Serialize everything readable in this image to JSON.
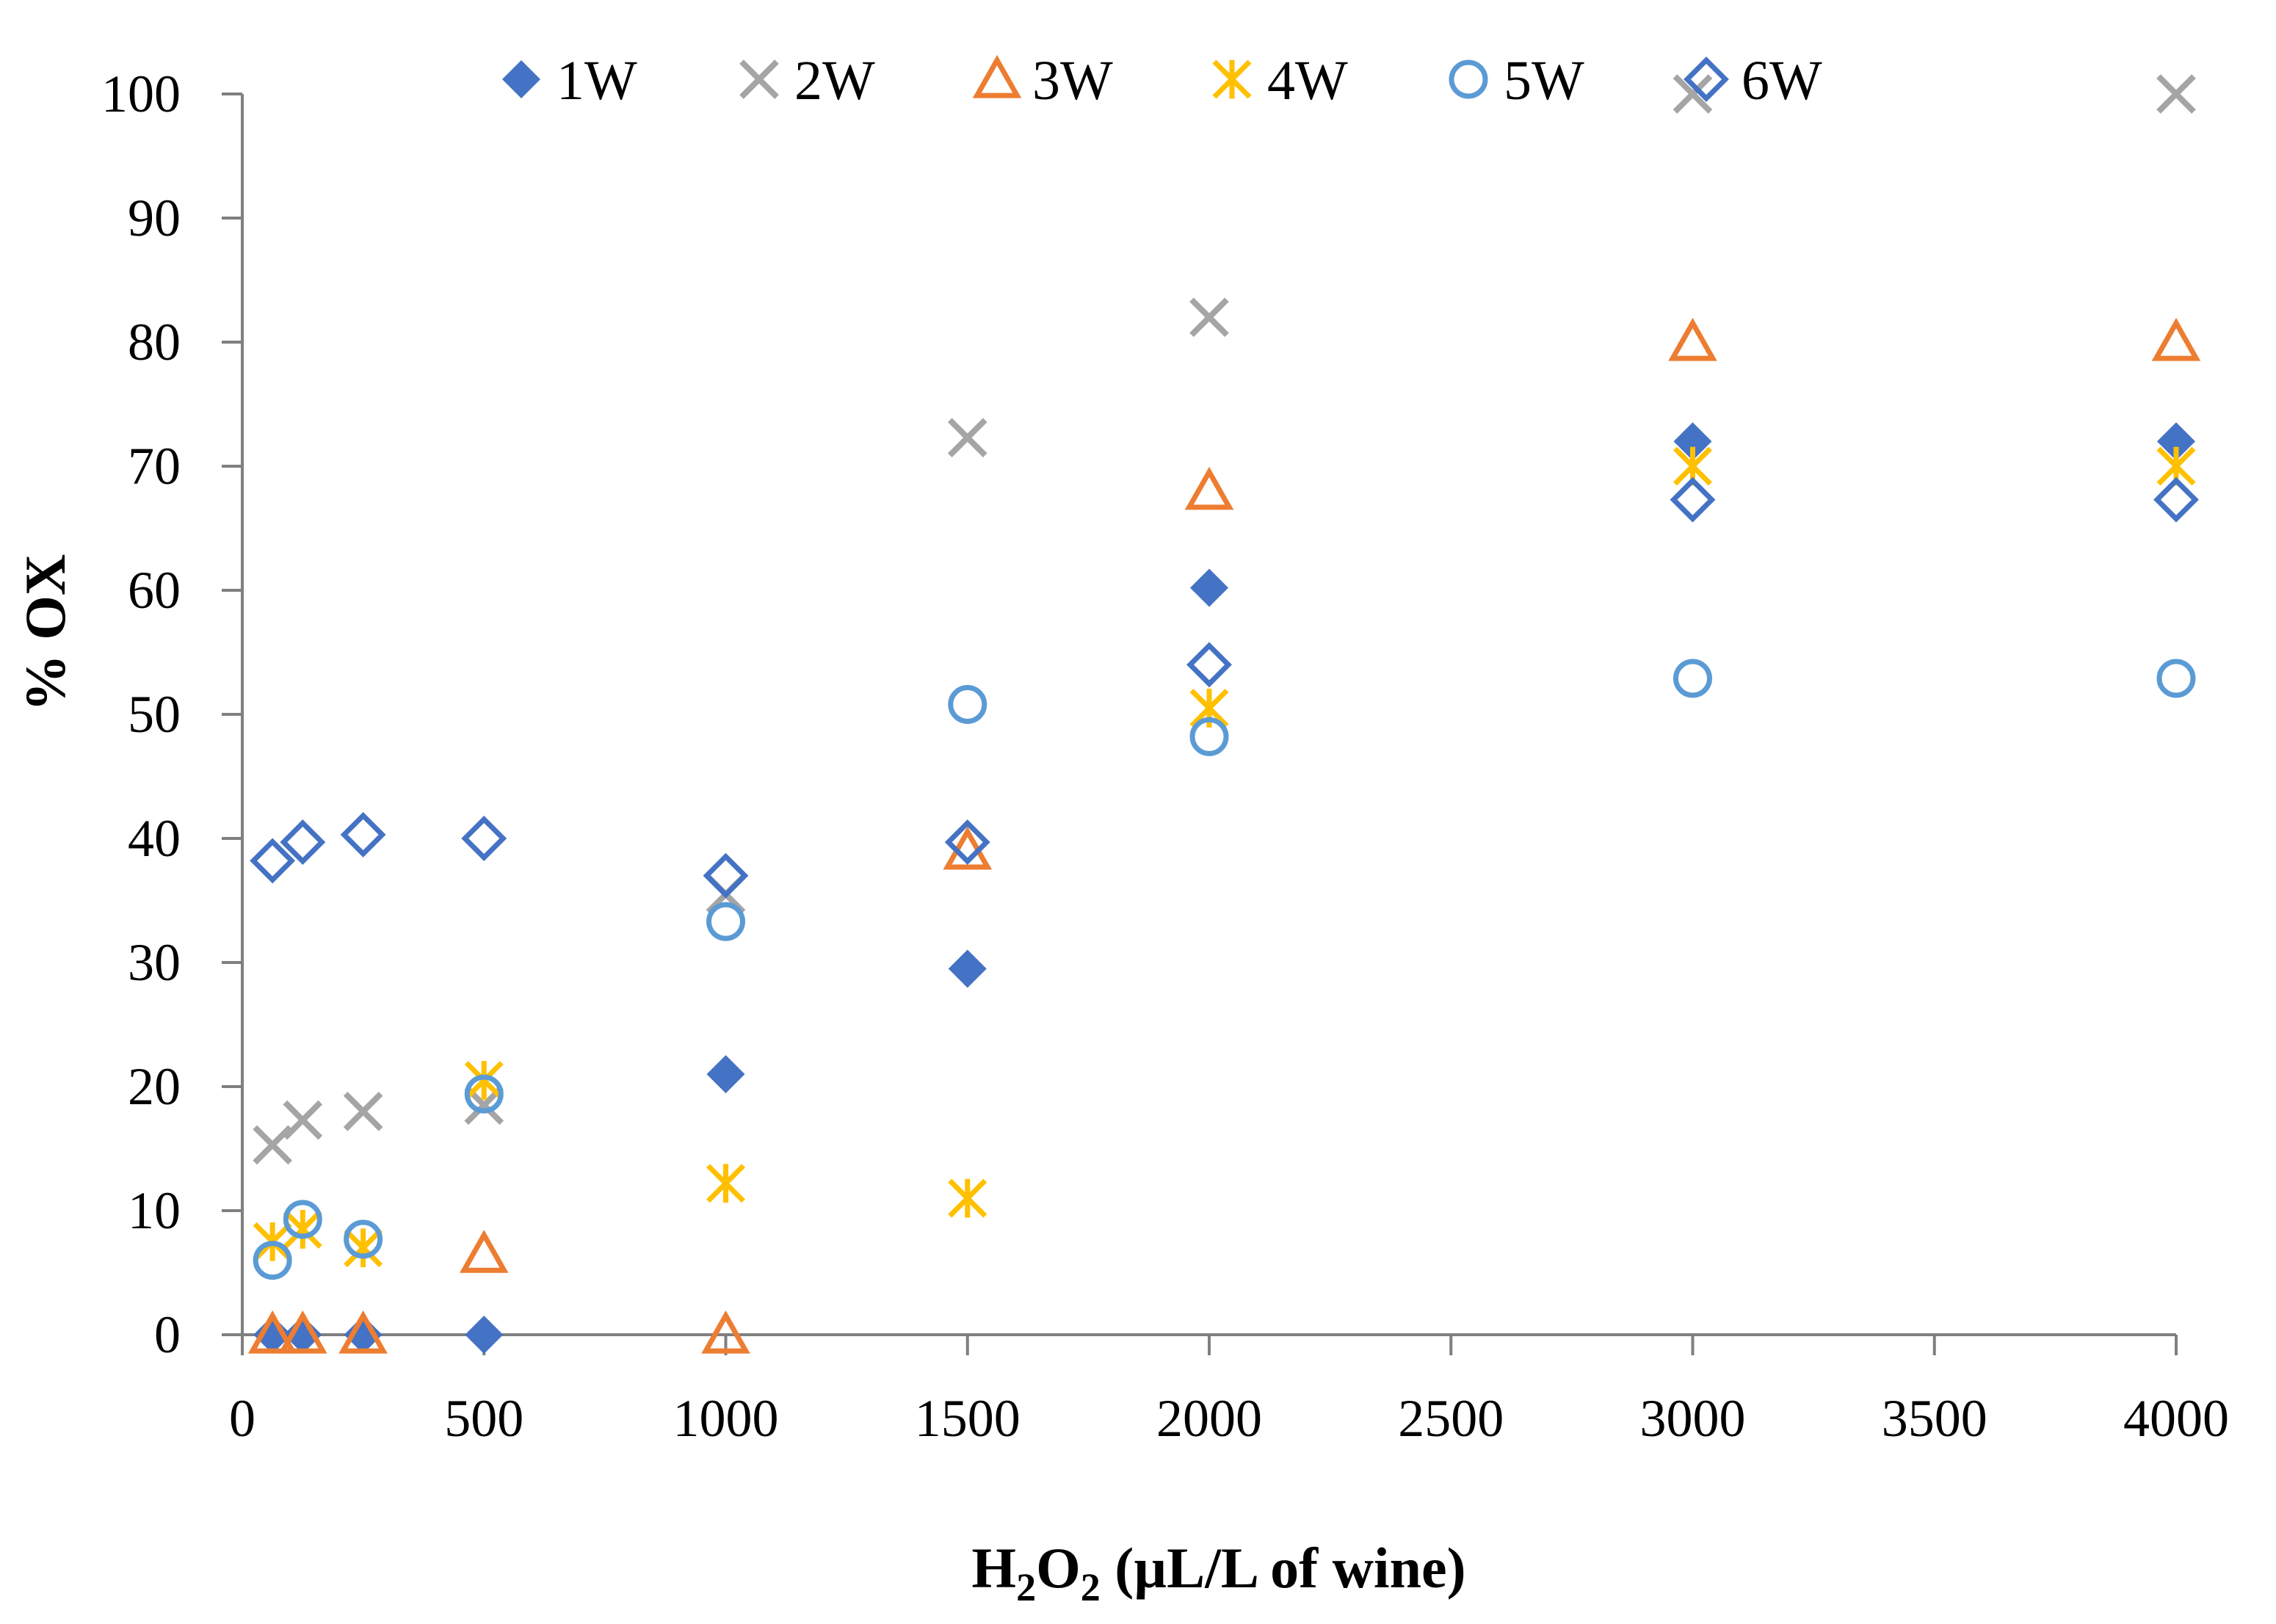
{
  "chart_data": {
    "type": "scatter",
    "title": "",
    "xlabel": {
      "main": "H",
      "sub1": "2",
      "mid": "O",
      "sub2": "2",
      "rest": " (µL/L of wine)"
    },
    "ylabel": "% OX",
    "xlim": [
      0,
      4000
    ],
    "ylim": [
      0,
      100
    ],
    "x_ticks": [
      0,
      500,
      1000,
      1500,
      2000,
      2500,
      3000,
      3500,
      4000
    ],
    "y_ticks": [
      0,
      10,
      20,
      30,
      40,
      50,
      60,
      70,
      80,
      90,
      100
    ],
    "grid": false,
    "legend_position": "top",
    "series": [
      {
        "name": "1W",
        "marker": "diamond-filled",
        "color": "#4472C4",
        "x": [
          62.5,
          125,
          250,
          500,
          1000,
          1500,
          2000,
          3000,
          4000
        ],
        "y": [
          0,
          0,
          0,
          0,
          21,
          29.5,
          60.2,
          72,
          72
        ]
      },
      {
        "name": "2W",
        "marker": "x",
        "color": "#A5A5A5",
        "x": [
          62.5,
          125,
          250,
          500,
          1000,
          1500,
          2000,
          3000,
          4000
        ],
        "y": [
          15.3,
          17.3,
          18,
          18.5,
          35.5,
          72.3,
          82,
          100,
          100
        ]
      },
      {
        "name": "3W",
        "marker": "triangle-open",
        "color": "#ED7D31",
        "x": [
          62.5,
          125,
          250,
          500,
          1000,
          1500,
          2000,
          3000,
          4000
        ],
        "y": [
          0,
          0,
          0,
          6.5,
          0,
          39,
          68,
          80,
          80
        ]
      },
      {
        "name": "4W",
        "marker": "asterisk",
        "color": "#FFC000",
        "x": [
          62.5,
          125,
          250,
          500,
          1000,
          1500,
          2000,
          3000,
          4000
        ],
        "y": [
          7.5,
          8.5,
          7,
          20.5,
          12.2,
          11,
          50.5,
          70,
          70
        ]
      },
      {
        "name": "5W",
        "marker": "circle-open",
        "color": "#5B9BD5",
        "x": [
          62.5,
          125,
          250,
          500,
          1000,
          1500,
          2000,
          3000,
          4000
        ],
        "y": [
          6,
          9.3,
          7.7,
          19.4,
          33.3,
          50.8,
          48.2,
          52.9,
          52.9
        ]
      },
      {
        "name": "6W",
        "marker": "diamond-open",
        "color": "#4472C4",
        "x": [
          62.5,
          125,
          250,
          500,
          1000,
          1500,
          2000,
          3000,
          4000
        ],
        "y": [
          38.2,
          39.7,
          40.3,
          40,
          37,
          39.7,
          54,
          67.3,
          67.3
        ]
      }
    ]
  }
}
